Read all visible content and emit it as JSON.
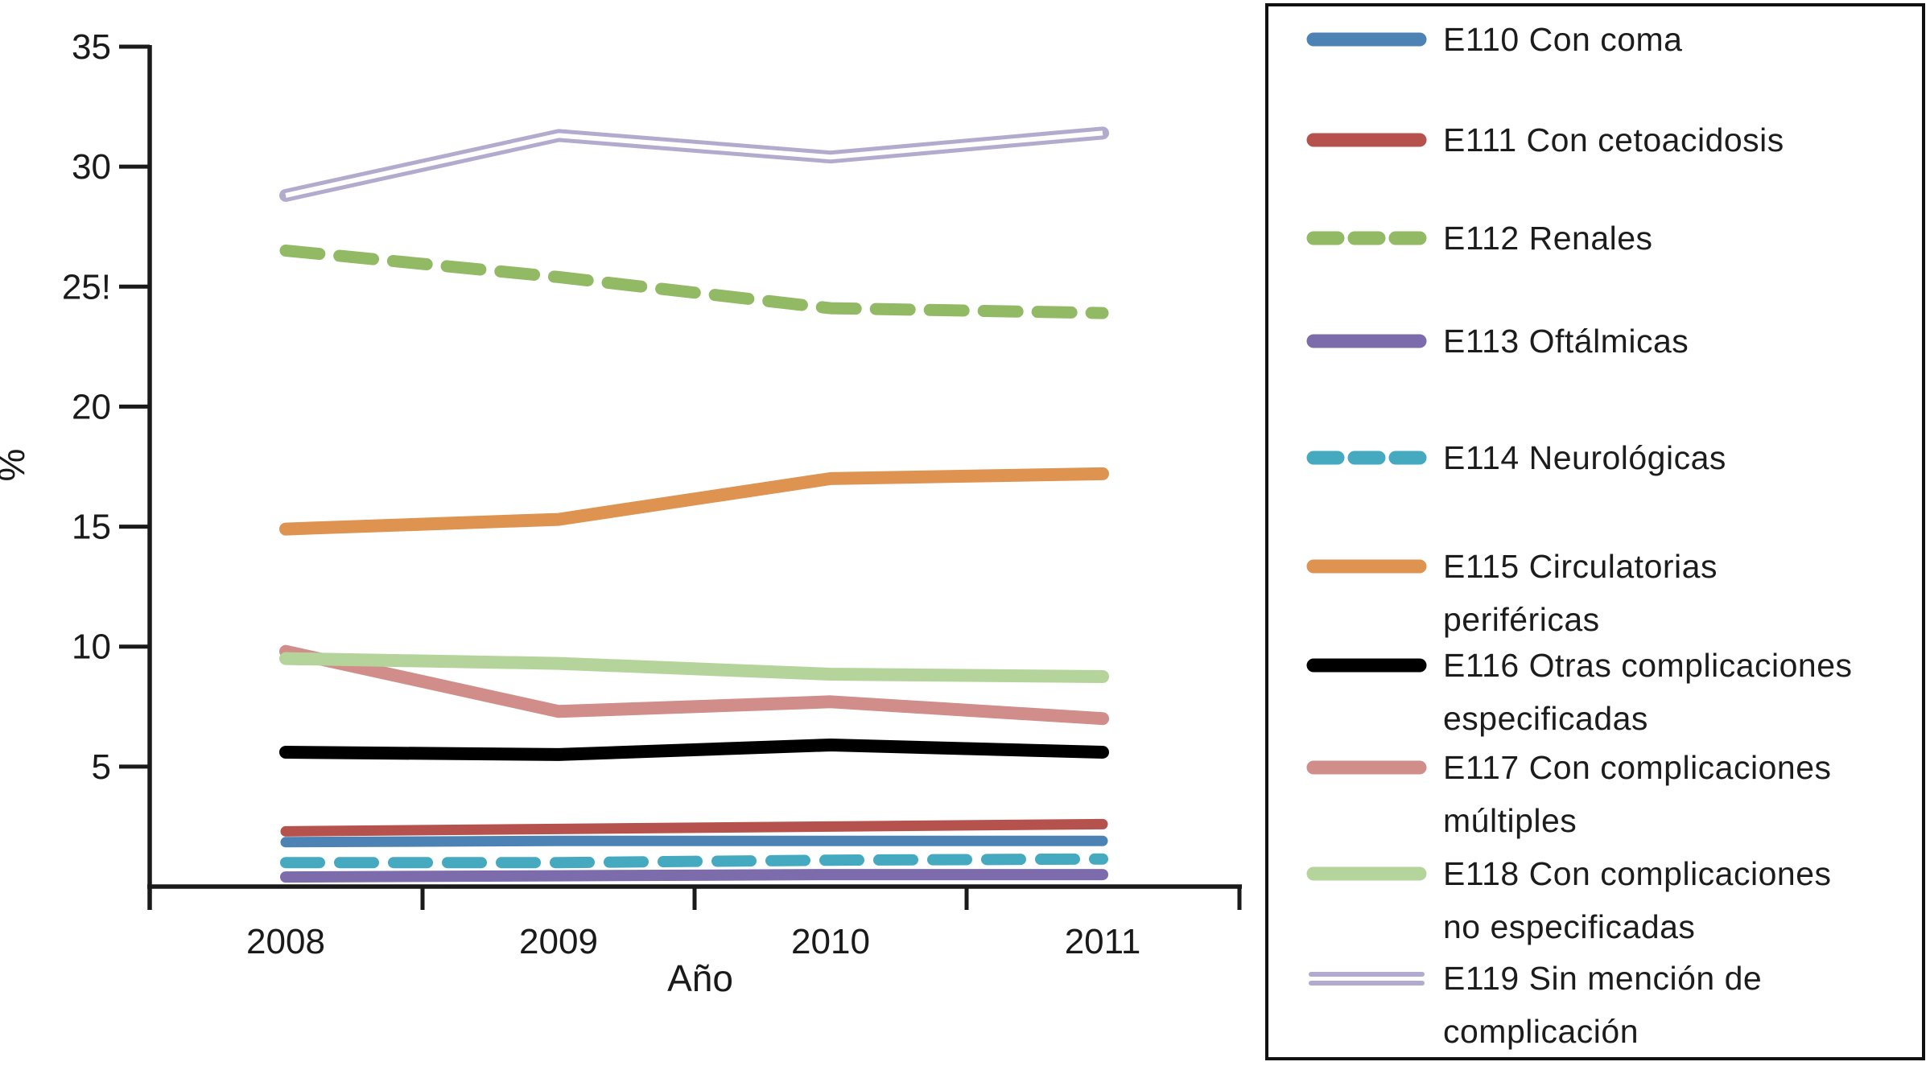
{
  "chart_data": {
    "type": "line",
    "title": "",
    "grid": false,
    "legend_position": "right-box",
    "x_axis": {
      "label": "Año",
      "categories": [
        "2008",
        "2009",
        "2010",
        "2011"
      ]
    },
    "y_axis": {
      "label": "%",
      "range": [
        0,
        35
      ],
      "ticks": [
        {
          "v": 35,
          "t": "35"
        },
        {
          "v": 30,
          "t": "30"
        },
        {
          "v": 25,
          "t": "25!"
        },
        {
          "v": 20,
          "t": "20"
        },
        {
          "v": 15,
          "t": "15"
        },
        {
          "v": 10,
          "t": "10"
        },
        {
          "v": 5,
          "t": "5"
        }
      ]
    },
    "series": [
      {
        "code": "E110",
        "name": "E110 Con coma",
        "legend_lines": [
          "E110 Con coma"
        ],
        "color": "#4d82b4",
        "style": "solid",
        "width": 13,
        "values": [
          1.85,
          1.9,
          1.9,
          1.9
        ]
      },
      {
        "code": "E111",
        "name": "E111 Con cetoacidosis",
        "legend_lines": [
          "E111 Con cetoacidosis"
        ],
        "color": "#b5524e",
        "style": "solid",
        "width": 13,
        "values": [
          2.3,
          2.4,
          2.5,
          2.6
        ]
      },
      {
        "code": "E112",
        "name": "E112 Renales",
        "legend_lines": [
          "E112 Renales"
        ],
        "color": "#92ba64",
        "style": "dashed",
        "width": 15,
        "values": [
          26.5,
          25.4,
          24.1,
          23.9
        ]
      },
      {
        "code": "E113",
        "name": "E113 Oftálmicas",
        "legend_lines": [
          "E113 Oftálmicas"
        ],
        "color": "#7d6cab",
        "style": "solid",
        "width": 14,
        "values": [
          0.4,
          0.45,
          0.5,
          0.5
        ]
      },
      {
        "code": "E114",
        "name": "E114 Neurológicas",
        "legend_lines": [
          "E114 Neurológicas"
        ],
        "color": "#45aabf",
        "style": "dashed",
        "width": 14,
        "values": [
          1.0,
          1.0,
          1.1,
          1.15
        ]
      },
      {
        "code": "E115",
        "name": "E115 Circulatorias periféricas",
        "legend_lines": [
          "E115 Circulatorias",
          "periféricas"
        ],
        "color": "#de9351",
        "style": "solid",
        "width": 16,
        "values": [
          14.9,
          15.3,
          17.0,
          17.2
        ]
      },
      {
        "code": "E116",
        "name": "E116 Otras complicaciones especificadas",
        "legend_lines": [
          "E116 Otras complicaciones",
          "especificadas"
        ],
        "color": "#000000",
        "style": "solid",
        "width": 16,
        "values": [
          5.6,
          5.5,
          5.9,
          5.6
        ]
      },
      {
        "code": "E117",
        "name": "E117 Con complicaciones múltiples",
        "legend_lines": [
          "E117 Con complicaciones",
          "múltiples"
        ],
        "color": "#d08d89",
        "style": "solid",
        "width": 16,
        "values": [
          9.8,
          7.3,
          7.7,
          7.0
        ]
      },
      {
        "code": "E118",
        "name": "E118 Con complicaciones no especificadas",
        "legend_lines": [
          "E118 Con complicaciones",
          "no especificadas"
        ],
        "color": "#b5d49b",
        "style": "solid",
        "width": 16,
        "values": [
          9.5,
          9.3,
          8.85,
          8.75
        ]
      },
      {
        "code": "E119",
        "name": "E119 Sin mención de complicación",
        "legend_lines": [
          "E119 Sin mención de",
          "complicación"
        ],
        "color": "#b3abcd",
        "style": "double",
        "width": 16,
        "values": [
          28.8,
          31.3,
          30.4,
          31.4
        ]
      }
    ]
  }
}
